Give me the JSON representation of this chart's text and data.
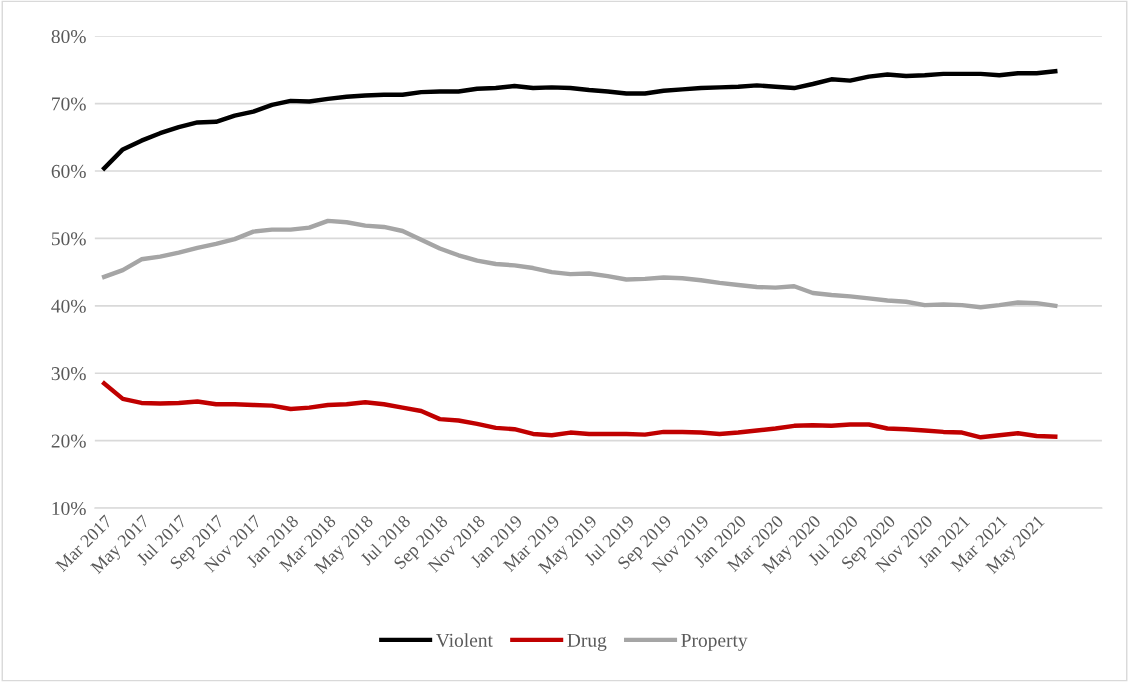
{
  "chart_data": {
    "type": "line",
    "categories": [
      "Mar 2017",
      null,
      "May 2017",
      null,
      "Jul 2017",
      null,
      "Sep 2017",
      null,
      "Nov 2017",
      null,
      "Jan 2018",
      null,
      "Mar 2018",
      null,
      "May 2018",
      null,
      "Jul 2018",
      null,
      "Sep 2018",
      null,
      "Nov 2018",
      null,
      "Jan 2019",
      null,
      "Mar 2019",
      null,
      "May 2019",
      null,
      "Jul 2019",
      null,
      "Sep 2019",
      null,
      "Nov 2019",
      null,
      "Jan 2020",
      null,
      "Mar 2020",
      null,
      "May 2020",
      null,
      "Jul 2020",
      null,
      "Sep 2020",
      null,
      "Nov 2020",
      null,
      "Jan 2021",
      null,
      "Mar 2021",
      null,
      "May 2021",
      null
    ],
    "series": [
      {
        "name": "Violent",
        "color": "#000000",
        "values": [
          60.4,
          63.2,
          64.5,
          65.6,
          66.5,
          67.2,
          67.3,
          68.2,
          68.8,
          69.8,
          70.4,
          70.3,
          70.7,
          71.0,
          71.2,
          71.3,
          71.3,
          71.7,
          71.8,
          71.8,
          72.2,
          72.3,
          72.6,
          72.3,
          72.4,
          72.3,
          72.0,
          71.8,
          71.5,
          71.5,
          71.9,
          72.1,
          72.3,
          72.4,
          72.5,
          72.7,
          72.5,
          72.3,
          72.9,
          73.6,
          73.4,
          74.0,
          74.3,
          74.1,
          74.2,
          74.4,
          74.4,
          74.4,
          74.2,
          74.5,
          74.5,
          74.8
        ]
      },
      {
        "name": "Drug",
        "color": "#c00000",
        "values": [
          28.5,
          26.2,
          25.6,
          25.5,
          25.6,
          25.8,
          25.4,
          25.4,
          25.3,
          25.2,
          24.7,
          24.9,
          25.3,
          25.4,
          25.7,
          25.4,
          24.9,
          24.4,
          23.2,
          23.0,
          22.5,
          21.9,
          21.7,
          21.0,
          20.8,
          21.2,
          21.0,
          21.0,
          21.0,
          20.9,
          21.3,
          21.3,
          21.2,
          21.0,
          21.2,
          21.5,
          21.8,
          22.2,
          22.3,
          22.2,
          22.4,
          22.4,
          21.8,
          21.7,
          21.5,
          21.3,
          21.2,
          20.5,
          20.8,
          21.1,
          20.7,
          20.6
        ]
      },
      {
        "name": "Property",
        "color": "#a5a5a5",
        "values": [
          44.3,
          45.3,
          46.9,
          47.3,
          47.9,
          48.6,
          49.2,
          49.9,
          51.0,
          51.3,
          51.3,
          51.6,
          52.6,
          52.4,
          51.9,
          51.7,
          51.1,
          49.8,
          48.5,
          47.5,
          46.7,
          46.2,
          46.0,
          45.6,
          45.0,
          44.7,
          44.8,
          44.4,
          43.9,
          44.0,
          44.2,
          44.1,
          43.8,
          43.4,
          43.1,
          42.8,
          42.7,
          42.9,
          41.9,
          41.6,
          41.4,
          41.1,
          40.8,
          40.6,
          40.1,
          40.2,
          40.1,
          39.8,
          40.1,
          40.5,
          40.4,
          40.0
        ]
      }
    ],
    "ylim": [
      10,
      80
    ],
    "yticks": [
      {
        "value": 10,
        "label": "10%"
      },
      {
        "value": 20,
        "label": "20%"
      },
      {
        "value": 30,
        "label": "30%"
      },
      {
        "value": 40,
        "label": "40%"
      },
      {
        "value": 50,
        "label": "50%"
      },
      {
        "value": 60,
        "label": "60%"
      },
      {
        "value": 70,
        "label": "70%"
      },
      {
        "value": 80,
        "label": "80%"
      }
    ],
    "grid": "y",
    "legend": "bottom",
    "marker": "none",
    "line_style": "solid"
  }
}
